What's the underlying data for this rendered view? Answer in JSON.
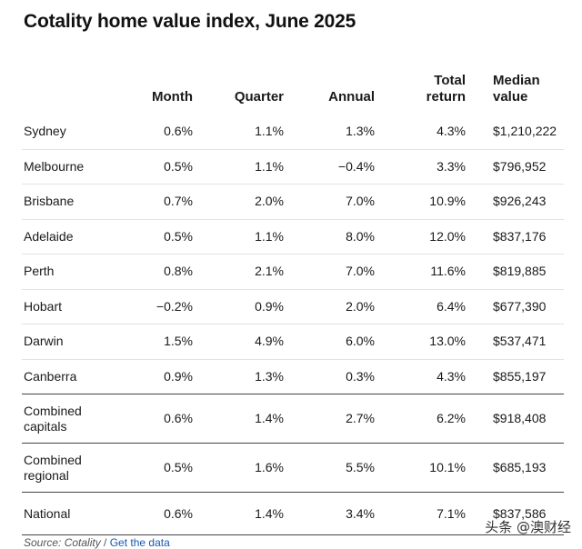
{
  "chart_data": {
    "type": "table",
    "title": "Cotality home value index, June 2025",
    "columns": [
      "",
      "Month",
      "Quarter",
      "Annual",
      "Total return",
      "Median value"
    ],
    "column_lines": [
      [
        ""
      ],
      [
        "Month"
      ],
      [
        "Quarter"
      ],
      [
        "Annual"
      ],
      [
        "Total",
        "return"
      ],
      [
        "Median",
        "value"
      ]
    ],
    "rows": [
      {
        "name": [
          "Sydney"
        ],
        "month": "0.6%",
        "quarter": "1.1%",
        "annual": "1.3%",
        "total_return": "4.3%",
        "median_value": "$1,210,222"
      },
      {
        "name": [
          "Melbourne"
        ],
        "month": "0.5%",
        "quarter": "1.1%",
        "annual": "−0.4%",
        "total_return": "3.3%",
        "median_value": "$796,952"
      },
      {
        "name": [
          "Brisbane"
        ],
        "month": "0.7%",
        "quarter": "2.0%",
        "annual": "7.0%",
        "total_return": "10.9%",
        "median_value": "$926,243"
      },
      {
        "name": [
          "Adelaide"
        ],
        "month": "0.5%",
        "quarter": "1.1%",
        "annual": "8.0%",
        "total_return": "12.0%",
        "median_value": "$837,176"
      },
      {
        "name": [
          "Perth"
        ],
        "month": "0.8%",
        "quarter": "2.1%",
        "annual": "7.0%",
        "total_return": "11.6%",
        "median_value": "$819,885"
      },
      {
        "name": [
          "Hobart"
        ],
        "month": "−0.2%",
        "quarter": "0.9%",
        "annual": "2.0%",
        "total_return": "6.4%",
        "median_value": "$677,390"
      },
      {
        "name": [
          "Darwin"
        ],
        "month": "1.5%",
        "quarter": "4.9%",
        "annual": "6.0%",
        "total_return": "13.0%",
        "median_value": "$537,471"
      },
      {
        "name": [
          "Canberra"
        ],
        "month": "0.9%",
        "quarter": "1.3%",
        "annual": "0.3%",
        "total_return": "4.3%",
        "median_value": "$855,197"
      },
      {
        "name": [
          "Combined",
          "capitals"
        ],
        "month": "0.6%",
        "quarter": "1.4%",
        "annual": "2.7%",
        "total_return": "6.2%",
        "median_value": "$918,408"
      },
      {
        "name": [
          "Combined",
          "regional"
        ],
        "month": "0.5%",
        "quarter": "1.6%",
        "annual": "5.5%",
        "total_return": "10.1%",
        "median_value": "$685,193"
      },
      {
        "name": [
          "National"
        ],
        "month": "0.6%",
        "quarter": "1.4%",
        "annual": "3.4%",
        "total_return": "7.1%",
        "median_value": "$837,586"
      }
    ]
  },
  "footer": {
    "source_label": "Source: Cotality",
    "separator": " / ",
    "link_label": "Get the data",
    "link_color": "#1558b0"
  },
  "watermark": "头条 @澳财经"
}
